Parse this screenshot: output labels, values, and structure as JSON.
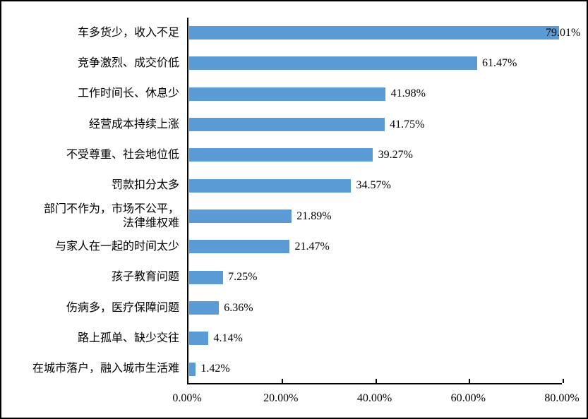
{
  "chart_data": {
    "type": "bar",
    "orientation": "horizontal",
    "title": "",
    "categories": [
      "车多货少，收入不足",
      "竞争激烈、成交价低",
      "工作时间长、休息少",
      "经营成本持续上涨",
      "不受尊重、社会地位低",
      "罚款扣分太多",
      "部门不作为，市场不公平，\n法律维权难",
      "与家人在一起的时间太少",
      "孩子教育问题",
      "伤病多，医疗保障问题",
      "路上孤单、缺少交往",
      "在城市落户，融入城市生活难"
    ],
    "values": [
      79.01,
      61.47,
      41.98,
      41.75,
      39.27,
      34.57,
      21.89,
      21.47,
      7.25,
      6.36,
      4.14,
      1.42
    ],
    "value_labels": [
      "79.01%",
      "61.47%",
      "41.98%",
      "41.75%",
      "39.27%",
      "34.57%",
      "21.89%",
      "21.47%",
      "7.25%",
      "6.36%",
      "4.14%",
      "1.42%"
    ],
    "x_ticks": [
      "0.00%",
      "20.00%",
      "40.00%",
      "60.00%",
      "80.00%"
    ],
    "x_tick_values": [
      0,
      20,
      40,
      60,
      80
    ],
    "xlim": [
      0,
      80
    ],
    "xlabel": "",
    "ylabel": "",
    "grid": false,
    "legend": null,
    "bar_color": "#5B9BD5",
    "axis_color": "#000000",
    "text_color": "#000000",
    "background_color": "#FFFFFF"
  }
}
